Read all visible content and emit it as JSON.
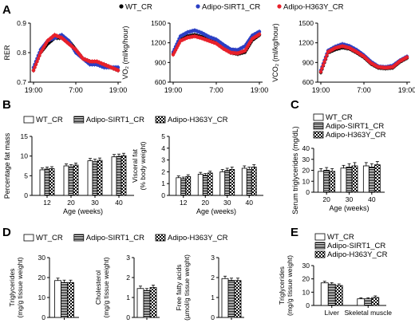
{
  "figure": {
    "panel_letters": [
      "A",
      "B",
      "C",
      "D",
      "E"
    ],
    "groups": [
      "WT_CR",
      "Adipo-SIRT1_CR",
      "Adipo-H363Y_CR"
    ],
    "group_colors": {
      "WT_CR": "#000000",
      "Adipo-SIRT1_CR": "#2b3fc4",
      "Adipo-H363Y_CR": "#e8202a"
    },
    "group_patterns": {
      "WT_CR": "solid-white",
      "Adipo-SIRT1_CR": "horizontal-stripes",
      "Adipo-H363Y_CR": "checkerboard"
    }
  },
  "chart_data": [
    {
      "id": "A1",
      "panel": "A",
      "type": "line",
      "title": "",
      "xlabel": "",
      "ylabel": "RER",
      "x_ticks": [
        "19:00",
        "7:00",
        "19:00"
      ],
      "x_hours": [
        0,
        12,
        24
      ],
      "ylim": [
        0.7,
        0.9
      ],
      "y_ticks": [
        0.7,
        0.8,
        0.9
      ],
      "series": [
        {
          "name": "WT_CR",
          "x": [
            0,
            2,
            4,
            6,
            8,
            10,
            12,
            14,
            16,
            18,
            20,
            22,
            24
          ],
          "values": [
            0.74,
            0.8,
            0.83,
            0.85,
            0.85,
            0.84,
            0.81,
            0.78,
            0.77,
            0.76,
            0.76,
            0.75,
            0.74
          ]
        },
        {
          "name": "Adipo-SIRT1_CR",
          "x": [
            0,
            2,
            4,
            6,
            8,
            10,
            12,
            14,
            16,
            18,
            20,
            22,
            24
          ],
          "values": [
            0.75,
            0.81,
            0.84,
            0.85,
            0.86,
            0.84,
            0.8,
            0.78,
            0.76,
            0.76,
            0.75,
            0.75,
            0.75
          ]
        },
        {
          "name": "Adipo-H363Y_CR",
          "x": [
            0,
            2,
            4,
            6,
            8,
            10,
            12,
            14,
            16,
            18,
            20,
            22,
            24
          ],
          "values": [
            0.74,
            0.8,
            0.84,
            0.86,
            0.85,
            0.83,
            0.81,
            0.78,
            0.77,
            0.77,
            0.76,
            0.75,
            0.74
          ]
        }
      ]
    },
    {
      "id": "A2",
      "panel": "A",
      "type": "line",
      "title": "",
      "xlabel": "",
      "ylabel": "VO₂ (ml/kg/hour)",
      "x_ticks": [
        "19:00",
        "7:00",
        "19:00"
      ],
      "x_hours": [
        0,
        12,
        24
      ],
      "ylim": [
        600,
        1500
      ],
      "y_ticks": [
        600,
        900,
        1200,
        1500
      ],
      "series": [
        {
          "name": "WT_CR",
          "x": [
            0,
            2,
            4,
            6,
            8,
            10,
            12,
            14,
            16,
            18,
            20,
            22,
            24
          ],
          "values": [
            1030,
            1240,
            1300,
            1320,
            1290,
            1240,
            1200,
            1120,
            1050,
            1030,
            1060,
            1240,
            1320
          ]
        },
        {
          "name": "Adipo-SIRT1_CR",
          "x": [
            0,
            2,
            4,
            6,
            8,
            10,
            12,
            14,
            16,
            18,
            20,
            22,
            24
          ],
          "values": [
            1060,
            1300,
            1360,
            1390,
            1350,
            1290,
            1250,
            1170,
            1100,
            1090,
            1150,
            1310,
            1370
          ]
        },
        {
          "name": "Adipo-H363Y_CR",
          "x": [
            0,
            2,
            4,
            6,
            8,
            10,
            12,
            14,
            16,
            18,
            20,
            22,
            24
          ],
          "values": [
            1020,
            1230,
            1280,
            1300,
            1270,
            1230,
            1190,
            1110,
            1050,
            1040,
            1080,
            1260,
            1330
          ]
        }
      ]
    },
    {
      "id": "A3",
      "panel": "A",
      "type": "line",
      "title": "",
      "xlabel": "",
      "ylabel": "VCO₂ (ml/kg/hour)",
      "x_ticks": [
        "19:00",
        "7:00",
        "19:00"
      ],
      "x_hours": [
        0,
        12,
        24
      ],
      "ylim": [
        600,
        1500
      ],
      "y_ticks": [
        600,
        900,
        1200,
        1500
      ],
      "series": [
        {
          "name": "WT_CR",
          "x": [
            0,
            2,
            4,
            6,
            8,
            10,
            12,
            14,
            16,
            18,
            20,
            22,
            24
          ],
          "values": [
            750,
            1050,
            1100,
            1130,
            1110,
            1050,
            980,
            880,
            820,
            810,
            820,
            910,
            970
          ]
        },
        {
          "name": "Adipo-SIRT1_CR",
          "x": [
            0,
            2,
            4,
            6,
            8,
            10,
            12,
            14,
            16,
            18,
            20,
            22,
            24
          ],
          "values": [
            780,
            1080,
            1140,
            1180,
            1150,
            1090,
            1010,
            910,
            840,
            830,
            850,
            930,
            990
          ]
        },
        {
          "name": "Adipo-H363Y_CR",
          "x": [
            0,
            2,
            4,
            6,
            8,
            10,
            12,
            14,
            16,
            18,
            20,
            22,
            24
          ],
          "values": [
            760,
            1060,
            1120,
            1150,
            1120,
            1060,
            990,
            890,
            830,
            820,
            830,
            920,
            980
          ]
        }
      ]
    },
    {
      "id": "B1",
      "panel": "B",
      "type": "bar",
      "title": "",
      "xlabel": "Age (weeks)",
      "ylabel": "Percentage fat mass",
      "categories": [
        "12",
        "20",
        "30",
        "40"
      ],
      "ylim": [
        0,
        15
      ],
      "y_ticks": [
        0,
        5,
        10,
        15
      ],
      "series": [
        {
          "name": "WT_CR",
          "values": [
            6.5,
            7.5,
            8.8,
            9.8
          ],
          "errors": [
            0.5,
            0.5,
            0.6,
            0.6
          ]
        },
        {
          "name": "Adipo-SIRT1_CR",
          "values": [
            6.7,
            7.3,
            8.6,
            9.9
          ],
          "errors": [
            0.5,
            0.5,
            0.6,
            0.6
          ]
        },
        {
          "name": "Adipo-H363Y_CR",
          "values": [
            6.8,
            7.7,
            8.9,
            10.1
          ],
          "errors": [
            0.5,
            0.5,
            0.6,
            0.6
          ]
        }
      ]
    },
    {
      "id": "B2",
      "panel": "B",
      "type": "bar",
      "title": "",
      "xlabel": "Age (weeks)",
      "ylabel": [
        "Visceral fat",
        "(% body weight)"
      ],
      "categories": [
        "12",
        "20",
        "30",
        "40"
      ],
      "ylim": [
        0,
        5
      ],
      "y_ticks": [
        0,
        1,
        2,
        3,
        4,
        5
      ],
      "series": [
        {
          "name": "WT_CR",
          "values": [
            1.5,
            1.8,
            2.0,
            2.3
          ],
          "errors": [
            0.15,
            0.15,
            0.2,
            0.2
          ]
        },
        {
          "name": "Adipo-SIRT1_CR",
          "values": [
            1.4,
            1.7,
            2.1,
            2.2
          ],
          "errors": [
            0.15,
            0.15,
            0.2,
            0.2
          ]
        },
        {
          "name": "Adipo-H363Y_CR",
          "values": [
            1.6,
            1.9,
            2.2,
            2.4
          ],
          "errors": [
            0.15,
            0.15,
            0.2,
            0.2
          ]
        }
      ]
    },
    {
      "id": "C",
      "panel": "C",
      "type": "bar",
      "title": "",
      "xlabel": "Age (weeks)",
      "ylabel": "Serum triglycerides (mg/dL)",
      "categories": [
        "20",
        "30",
        "40"
      ],
      "ylim": [
        0,
        40
      ],
      "y_ticks": [
        0,
        10,
        20,
        30,
        40
      ],
      "series": [
        {
          "name": "WT_CR",
          "values": [
            19,
            22,
            24
          ],
          "errors": [
            2.5,
            2.5,
            3
          ]
        },
        {
          "name": "Adipo-SIRT1_CR",
          "values": [
            20,
            23,
            23
          ],
          "errors": [
            2.5,
            3,
            3
          ]
        },
        {
          "name": "Adipo-H363Y_CR",
          "values": [
            19,
            24,
            25
          ],
          "errors": [
            2.5,
            3,
            3
          ]
        }
      ]
    },
    {
      "id": "D1",
      "panel": "D",
      "type": "bar",
      "title": "",
      "xlabel": "",
      "ylabel": [
        "Triglycerides",
        "(mg/g tissue weight)"
      ],
      "categories": [
        ""
      ],
      "ylim": [
        0,
        30
      ],
      "y_ticks": [
        0,
        10,
        20,
        30
      ],
      "series": [
        {
          "name": "WT_CR",
          "values": [
            18.5
          ],
          "errors": [
            1.2
          ]
        },
        {
          "name": "Adipo-SIRT1_CR",
          "values": [
            17.5
          ],
          "errors": [
            1.2
          ]
        },
        {
          "name": "Adipo-H363Y_CR",
          "values": [
            17.5
          ],
          "errors": [
            1.2
          ]
        }
      ]
    },
    {
      "id": "D2",
      "panel": "D",
      "type": "bar",
      "title": "",
      "xlabel": "",
      "ylabel": [
        "Cholesterol",
        "(mg/g tissue weight)"
      ],
      "categories": [
        ""
      ],
      "ylim": [
        0,
        3
      ],
      "y_ticks": [
        0,
        1,
        2,
        3
      ],
      "series": [
        {
          "name": "WT_CR",
          "values": [
            1.45
          ],
          "errors": [
            0.12
          ]
        },
        {
          "name": "Adipo-SIRT1_CR",
          "values": [
            1.35
          ],
          "errors": [
            0.1
          ]
        },
        {
          "name": "Adipo-H363Y_CR",
          "values": [
            1.5
          ],
          "errors": [
            0.12
          ]
        }
      ]
    },
    {
      "id": "D3",
      "panel": "D",
      "type": "bar",
      "title": "",
      "xlabel": "",
      "ylabel": [
        "Free fatty acids",
        "(µmol/g tissue weight)"
      ],
      "categories": [
        ""
      ],
      "ylim": [
        0,
        3
      ],
      "y_ticks": [
        0,
        1,
        2,
        3
      ],
      "series": [
        {
          "name": "WT_CR",
          "values": [
            1.95
          ],
          "errors": [
            0.12
          ]
        },
        {
          "name": "Adipo-SIRT1_CR",
          "values": [
            1.85
          ],
          "errors": [
            0.12
          ]
        },
        {
          "name": "Adipo-H363Y_CR",
          "values": [
            1.85
          ],
          "errors": [
            0.12
          ]
        }
      ]
    },
    {
      "id": "E",
      "panel": "E",
      "type": "bar",
      "title": "",
      "xlabel": "",
      "ylabel": [
        "Triglycerides",
        "(mg/g tissue weight)"
      ],
      "categories": [
        "Liver",
        "Skeletal muscle"
      ],
      "ylim": [
        0,
        30
      ],
      "y_ticks": [
        0,
        10,
        20,
        30
      ],
      "series": [
        {
          "name": "WT_CR",
          "values": [
            17,
            5
          ],
          "errors": [
            1.2,
            0.8
          ]
        },
        {
          "name": "Adipo-SIRT1_CR",
          "values": [
            16,
            5
          ],
          "errors": [
            1.2,
            0.8
          ]
        },
        {
          "name": "Adipo-H363Y_CR",
          "values": [
            15,
            6
          ],
          "errors": [
            1.2,
            1.2
          ]
        }
      ]
    }
  ]
}
